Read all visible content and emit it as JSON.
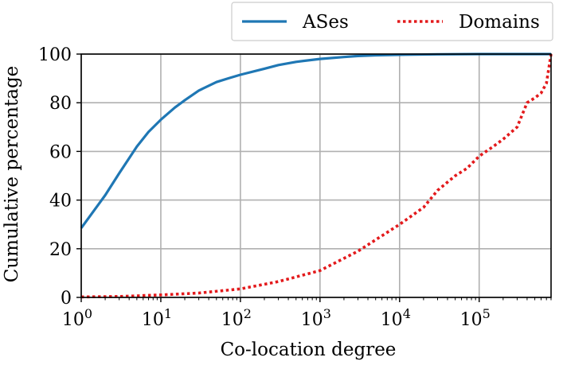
{
  "chart_data": {
    "type": "line",
    "title": "",
    "xlabel": "Co-location degree",
    "ylabel": "Cumulative percentage",
    "xscale": "log",
    "xlim": [
      1,
      800000
    ],
    "ylim": [
      0,
      100
    ],
    "grid": true,
    "legend_position": "top-right, above plot",
    "xticks": [
      {
        "value": 1,
        "base": "10",
        "exp": "0"
      },
      {
        "value": 10,
        "base": "10",
        "exp": "1"
      },
      {
        "value": 100,
        "base": "10",
        "exp": "2"
      },
      {
        "value": 1000,
        "base": "10",
        "exp": "3"
      },
      {
        "value": 10000,
        "base": "10",
        "exp": "4"
      },
      {
        "value": 100000,
        "base": "10",
        "exp": "5"
      }
    ],
    "yticks": [
      "0",
      "20",
      "40",
      "60",
      "80",
      "100"
    ],
    "series": [
      {
        "name": "ASes",
        "color": "#1f77b4",
        "style": "solid",
        "x": [
          1,
          2,
          3,
          5,
          7,
          10,
          15,
          20,
          30,
          50,
          70,
          100,
          200,
          300,
          500,
          1000,
          2000,
          3000,
          5000,
          10000,
          30000,
          100000,
          800000
        ],
        "y": [
          28.5,
          42,
          51,
          62,
          68,
          73,
          78,
          81,
          85,
          88.5,
          90,
          91.5,
          94,
          95.5,
          96.8,
          98,
          98.8,
          99.2,
          99.5,
          99.7,
          99.9,
          100,
          100
        ]
      },
      {
        "name": "Domains",
        "color": "#e31a1c",
        "style": "dotted",
        "x": [
          1,
          3,
          10,
          30,
          100,
          300,
          1000,
          3000,
          10000,
          20000,
          30000,
          50000,
          70000,
          100000,
          150000,
          200000,
          300000,
          400000,
          500000,
          600000,
          700000,
          800000
        ],
        "y": [
          0.2,
          0.4,
          1,
          1.8,
          3.5,
          6.5,
          11,
          19,
          30,
          37,
          44,
          50,
          53,
          58,
          62,
          65,
          70,
          80,
          82,
          84,
          88,
          100
        ]
      }
    ]
  }
}
